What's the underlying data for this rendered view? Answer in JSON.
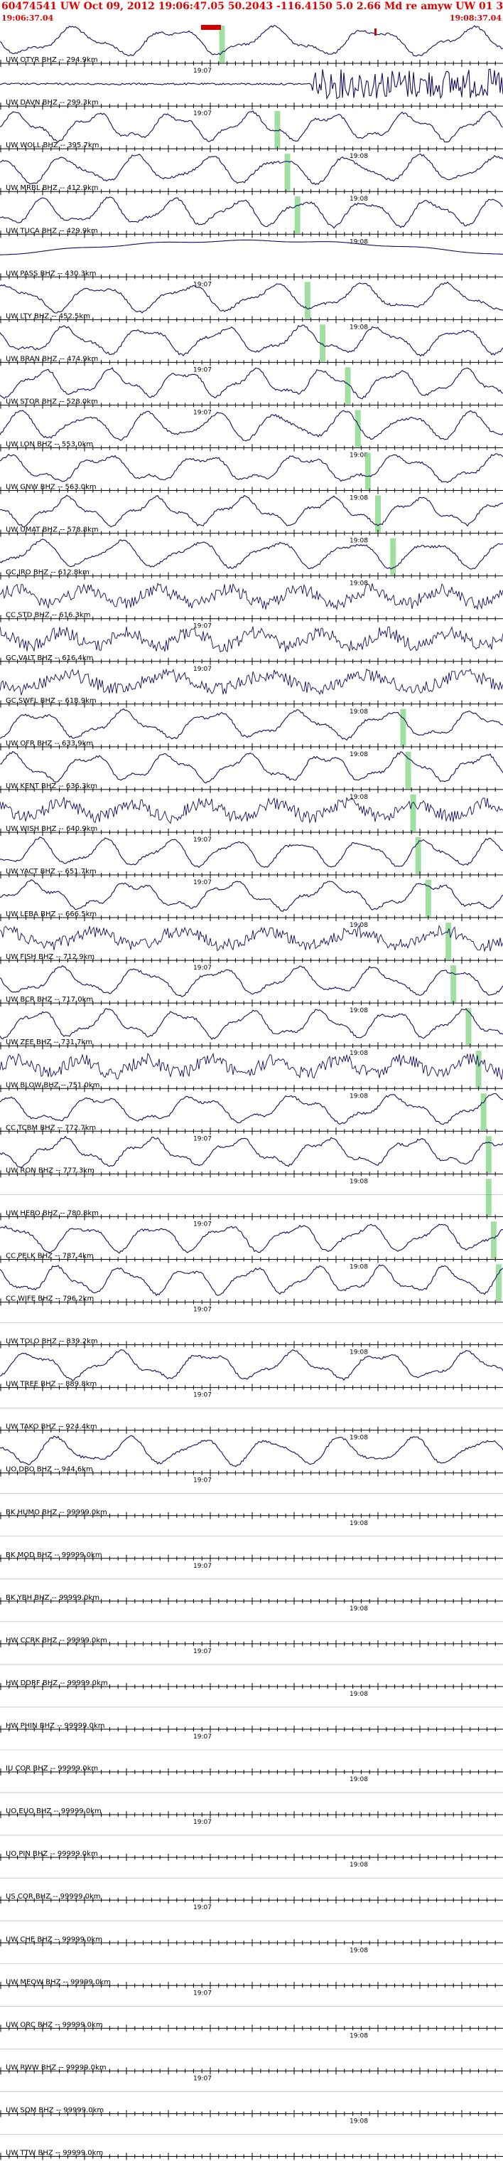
{
  "header": {
    "title": "60474541 UW Oct 09, 2012 19:06:47.05   50.2043 -116.4150  5.0 2.66 Md re amyw UW 01   3",
    "start_time": "19:06:37.04",
    "end_time": "19:08:37.04"
  },
  "colors": {
    "trace": "#1a0a5e",
    "pick": "#90d890",
    "axis": "#000000",
    "header": "#e00000"
  },
  "chart_data": {
    "type": "line",
    "title": "60474541 UW Oct 09, 2012 19:06:47.05   50.2043 -116.4150  5.0 2.66 Md re amyw UW 01   3",
    "x_range": [
      "19:06:37.04",
      "19:08:37.04"
    ],
    "tick_labels": [
      "19:07",
      "19:08"
    ],
    "channels": [
      {
        "label": "UW OTYR BHZ -- 294.9km",
        "tick": "19:07",
        "pick_frac": 0.44,
        "style": "wave"
      },
      {
        "label": "UW DAVN BHZ -- 299.3km",
        "tick": "19:07",
        "pick_frac": null,
        "style": "burst"
      },
      {
        "label": "UW WOLL BHZ -- 395.7km",
        "tick": "19:08",
        "pick_frac": 0.55,
        "style": "wave"
      },
      {
        "label": "UW MRBL BHZ -- 412.9km",
        "tick": "19:08",
        "pick_frac": 0.57,
        "style": "wave"
      },
      {
        "label": "UW TUCA BHZ -- 429.9km",
        "tick": "19:08",
        "pick_frac": 0.59,
        "style": "wave"
      },
      {
        "label": "UW PASS BHZ -- 430.3km",
        "tick": "19:07",
        "pick_frac": null,
        "style": "drift"
      },
      {
        "label": "UW LTY BHZ -- 452.5km",
        "tick": "19:08",
        "pick_frac": 0.61,
        "style": "wave"
      },
      {
        "label": "UW BRAN BHZ -- 474.9km",
        "tick": "19:07",
        "pick_frac": 0.64,
        "style": "wave"
      },
      {
        "label": "UW STOR BHZ -- 528.0km",
        "tick": "19:07",
        "pick_frac": 0.69,
        "style": "wave"
      },
      {
        "label": "UW LON BHZ -- 553.0km",
        "tick": "19:08",
        "pick_frac": 0.71,
        "style": "wave"
      },
      {
        "label": "UW GNW BHZ -- 563.0km",
        "tick": "19:08",
        "pick_frac": 0.73,
        "style": "wave"
      },
      {
        "label": "UW UMAT BHZ -- 578.8km",
        "tick": "19:08",
        "pick_frac": 0.75,
        "style": "wave"
      },
      {
        "label": "GC JRO BHZ -- 612.8km",
        "tick": "19:08",
        "pick_frac": 0.78,
        "style": "wave"
      },
      {
        "label": "CC STD BHZ -- 616.3km",
        "tick": "19:07",
        "pick_frac": null,
        "style": "noisy"
      },
      {
        "label": "GC VALT BHZ -- 616.4km",
        "tick": "19:07",
        "pick_frac": null,
        "style": "noisy"
      },
      {
        "label": "GC SWFL BHZ -- 618.9km",
        "tick": "19:08",
        "pick_frac": null,
        "style": "noisy"
      },
      {
        "label": "UW OFR BHZ -- 633.9km",
        "tick": "19:08",
        "pick_frac": 0.8,
        "style": "wave"
      },
      {
        "label": "UW KENT BHZ -- 636.3km",
        "tick": "19:08",
        "pick_frac": 0.81,
        "style": "wave"
      },
      {
        "label": "UW WISH BHZ -- 640.9km",
        "tick": "19:07",
        "pick_frac": 0.82,
        "style": "noisy"
      },
      {
        "label": "UW YACT BHZ -- 651.7km",
        "tick": "19:07",
        "pick_frac": 0.83,
        "style": "wave"
      },
      {
        "label": "UW LEBA BHZ -- 666.5km",
        "tick": "19:08",
        "pick_frac": 0.85,
        "style": "wave"
      },
      {
        "label": "UW FISH BHZ -- 712.9km",
        "tick": "19:07",
        "pick_frac": 0.89,
        "style": "noisy"
      },
      {
        "label": "UW BCR BHZ -- 717.0km",
        "tick": "19:08",
        "pick_frac": 0.9,
        "style": "wave"
      },
      {
        "label": "UW ZEE BHZ -- 731.7km",
        "tick": "19:08",
        "pick_frac": 0.93,
        "style": "wave"
      },
      {
        "label": "UW BLOW BHZ -- 751.0km",
        "tick": "19:08",
        "pick_frac": 0.95,
        "style": "noisy"
      },
      {
        "label": "CC TCBM BHZ -- 772.7km",
        "tick": "19:07",
        "pick_frac": 0.96,
        "style": "wave"
      },
      {
        "label": "UW RON BHZ -- 777.3km",
        "tick": "19:08",
        "pick_frac": 0.97,
        "style": "wave"
      },
      {
        "label": "UW HEBO BHZ -- 780.8km",
        "tick": "19:07",
        "pick_frac": 0.97,
        "style": "flat"
      },
      {
        "label": "CC PELK BHZ -- 787.4km",
        "tick": "19:08",
        "pick_frac": 0.98,
        "style": "wave"
      },
      {
        "label": "CC WIFE BHZ -- 796.2km",
        "tick": "19:07",
        "pick_frac": 0.99,
        "style": "wave"
      },
      {
        "label": "UW TOLO BHZ -- 839.2km",
        "tick": "19:08",
        "pick_frac": null,
        "style": "flat"
      },
      {
        "label": "UW TREE BHZ -- 889.8km",
        "tick": "19:07",
        "pick_frac": null,
        "style": "wave"
      },
      {
        "label": "UW TAKO BHZ -- 924.4km",
        "tick": "19:08",
        "pick_frac": null,
        "style": "flat"
      },
      {
        "label": "UO DBO BHZ -- 944.6km",
        "tick": "19:07",
        "pick_frac": null,
        "style": "wave"
      },
      {
        "label": "BK HUMO BHZ -- 99999.0km",
        "tick": "19:08",
        "pick_frac": null,
        "style": "flat"
      },
      {
        "label": "BK MOD BHZ -- 99999.0km",
        "tick": "19:07",
        "pick_frac": null,
        "style": "flat"
      },
      {
        "label": "BK YBH BHZ -- 99999.0km",
        "tick": "19:08",
        "pick_frac": null,
        "style": "flat"
      },
      {
        "label": "HW CCRK BHZ -- 99999.0km",
        "tick": "19:07",
        "pick_frac": null,
        "style": "flat"
      },
      {
        "label": "HW DDRF BHZ -- 99999.0km",
        "tick": "19:08",
        "pick_frac": null,
        "style": "flat"
      },
      {
        "label": "HW PHIN BHZ -- 99999.0km",
        "tick": "19:07",
        "pick_frac": null,
        "style": "flat"
      },
      {
        "label": "IU COR BHZ -- 99999.0km",
        "tick": "19:08",
        "pick_frac": null,
        "style": "flat"
      },
      {
        "label": "UO EUO BHZ -- 99999.0km",
        "tick": "19:07",
        "pick_frac": null,
        "style": "flat"
      },
      {
        "label": "UO PIN BHZ -- 99999.0km",
        "tick": "19:08",
        "pick_frac": null,
        "style": "flat"
      },
      {
        "label": "US COR BHZ -- 99999.0km",
        "tick": "19:07",
        "pick_frac": null,
        "style": "flat"
      },
      {
        "label": "UW CHE BHZ -- 99999.0km",
        "tick": "19:08",
        "pick_frac": null,
        "style": "flat"
      },
      {
        "label": "UW MEOW BHZ -- 99999.0km",
        "tick": "19:07",
        "pick_frac": null,
        "style": "flat"
      },
      {
        "label": "UW ORC BHZ -- 99999.0km",
        "tick": "19:08",
        "pick_frac": null,
        "style": "flat"
      },
      {
        "label": "UW RWW BHZ -- 99999.0km",
        "tick": "19:07",
        "pick_frac": null,
        "style": "flat"
      },
      {
        "label": "UW SQM BHZ -- 99999.0km",
        "tick": "19:08",
        "pick_frac": null,
        "style": "flat"
      },
      {
        "label": "UW TTW BHZ -- 99999.0km",
        "tick": "19:07",
        "pick_frac": null,
        "style": "flat"
      }
    ]
  }
}
